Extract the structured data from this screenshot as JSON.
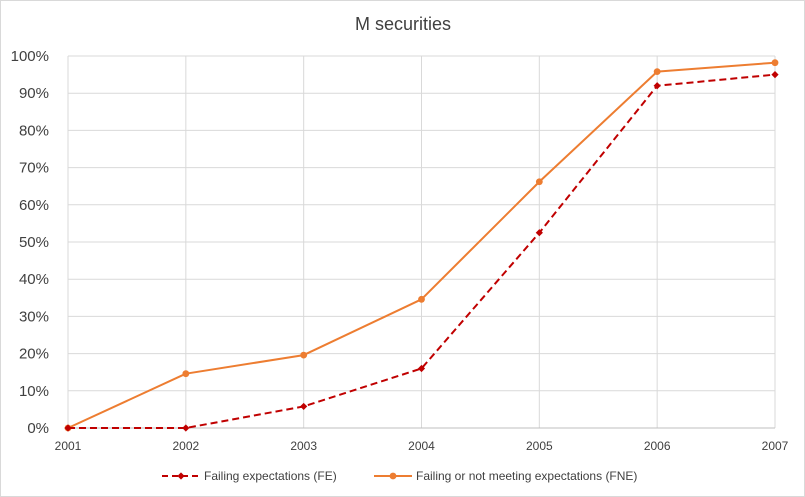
{
  "chart_data": {
    "type": "line",
    "title": "M securities",
    "xlabel": "",
    "ylabel": "",
    "categories": [
      "2001",
      "2002",
      "2003",
      "2004",
      "2005",
      "2006",
      "2007"
    ],
    "y_ticks": [
      "0%",
      "10%",
      "20%",
      "30%",
      "40%",
      "50%",
      "60%",
      "70%",
      "80%",
      "90%",
      "100%"
    ],
    "ylim": [
      0,
      100
    ],
    "grid": true,
    "legend_position": "bottom",
    "series": [
      {
        "name": "Failing expectations (FE)",
        "values": [
          0,
          0,
          5.8,
          16,
          52.5,
          92,
          95
        ],
        "color": "#c00000",
        "line_style": "dashed",
        "marker": "diamond"
      },
      {
        "name": "Failing or not meeting expectations (FNE)",
        "values": [
          0,
          14.6,
          19.6,
          34.6,
          66.2,
          95.8,
          98.2
        ],
        "color": "#ed7d31",
        "line_style": "solid",
        "marker": "circle"
      }
    ]
  }
}
